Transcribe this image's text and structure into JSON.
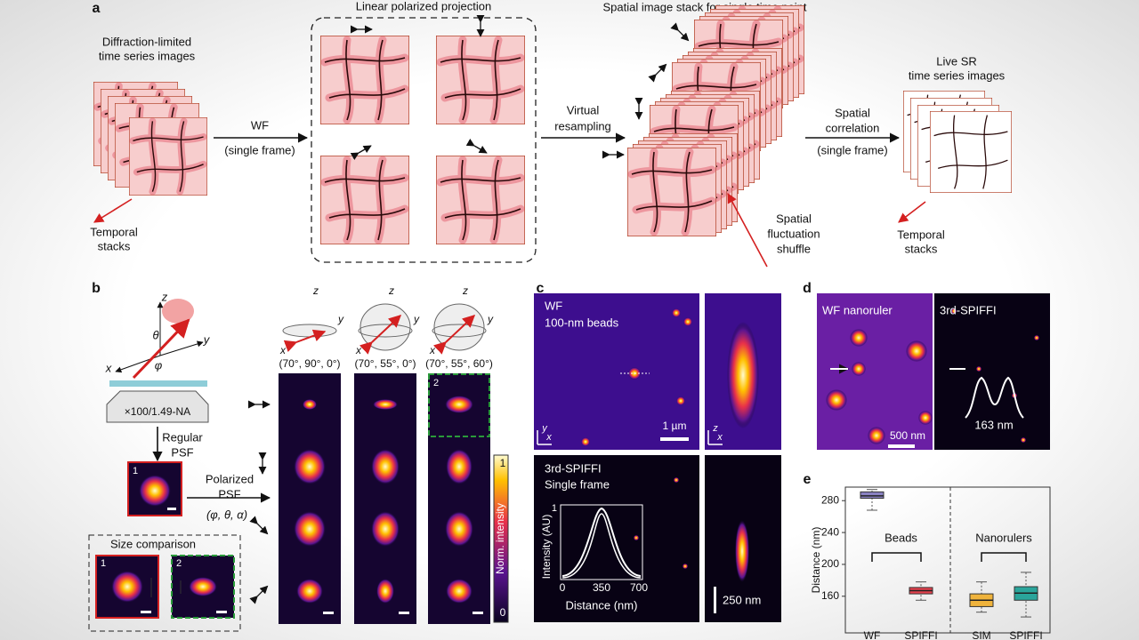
{
  "panel_a": {
    "label": "a",
    "left_title": [
      "Diffraction-limited",
      "time series images"
    ],
    "wf": "WF",
    "wf_note": "(single frame)",
    "projection_title": "Linear polarized projection",
    "resampling": [
      "Virtual",
      "resampling"
    ],
    "stack_title": "Spatial image stack for single time point",
    "shuffle": [
      "Spatial",
      "fluctuation",
      "shuffle"
    ],
    "correlation": [
      "Spatial",
      "correlation"
    ],
    "correlation_note": "(single frame)",
    "right_title": [
      "Live SR",
      "time series images"
    ],
    "temporal_left": [
      "Temporal",
      "stacks"
    ],
    "temporal_right": [
      "Temporal",
      "stacks"
    ]
  },
  "panel_b": {
    "label": "b",
    "axes": [
      "z",
      "y",
      "x"
    ],
    "angles": [
      "θ",
      "α",
      "φ"
    ],
    "objective": "×100/1.49-NA",
    "regular": [
      "Regular",
      "PSF"
    ],
    "polarized": [
      "Polarized",
      "PSF"
    ],
    "params": "(φ, θ, α)",
    "inset_number": "1",
    "size_comparison": "Size comparison",
    "compare_numbers": [
      "1",
      "2"
    ],
    "columns": [
      "(70°, 90°, 0°)",
      "(70°, 55°, 0°)",
      "(70°, 55°, 60°)"
    ],
    "column_mark": "2",
    "colorbar_max": "1",
    "colorbar_min": "0",
    "colorbar_label": "Norm. intensity",
    "axes_small": [
      "z",
      "y",
      "x"
    ]
  },
  "panel_c": {
    "label": "c",
    "wf": "WF",
    "beads": "100-nm beads",
    "scale_top": "1 µm",
    "spiffi": "3rd-SPIFFI",
    "single": "Single frame",
    "intensity": "Intensity (AU)",
    "intensity_max": "1",
    "distance_ticks": [
      "0",
      "350",
      "700"
    ],
    "distance": "Distance (nm)",
    "scale_bottom": "250 nm",
    "axis_x": "x",
    "axis_y": "y",
    "axis_z": "z"
  },
  "panel_d": {
    "label": "d",
    "wf": "WF nanoruler",
    "spiffi": "3rd-SPIFFI",
    "scale": "500 nm",
    "separation": "163 nm"
  },
  "chart_data": {
    "type": "box",
    "label": "e",
    "y_label": "Distance (nm)",
    "categories": [
      "WF",
      "SPIFFI",
      "SIM",
      "SPIFFI"
    ],
    "group_labels": [
      "Beads",
      "Nanorulers"
    ],
    "boxes": [
      {
        "min": 268,
        "q1": 283,
        "median": 286,
        "q3": 291,
        "max": 294,
        "color": "#8a82c2"
      },
      {
        "min": 155,
        "q1": 163,
        "median": 167,
        "q3": 171,
        "max": 178,
        "color": "#e5414e"
      },
      {
        "min": 140,
        "q1": 147,
        "median": 155,
        "q3": 163,
        "max": 178,
        "color": "#efb33c"
      },
      {
        "min": 134,
        "q1": 155,
        "median": 164,
        "q3": 172,
        "max": 190,
        "color": "#2aa59b"
      }
    ],
    "ylim": [
      114,
      297
    ],
    "yticks": [
      160,
      200,
      240,
      280
    ]
  }
}
